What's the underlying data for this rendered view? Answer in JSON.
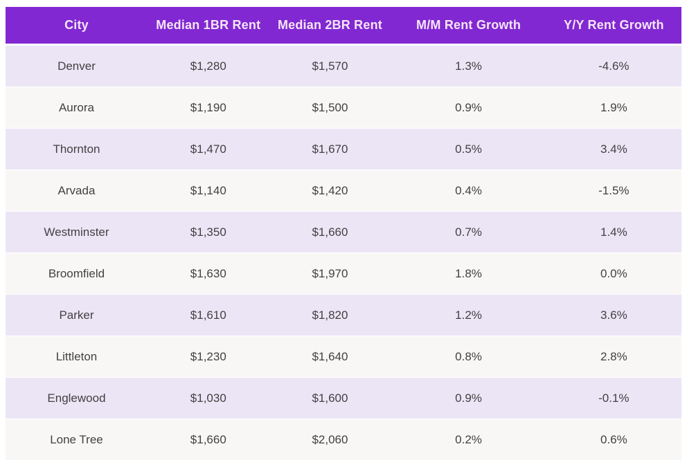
{
  "colors": {
    "header_bg": "#8128d2",
    "header_text": "#f6e6f8",
    "row_alt_lavender": "#ece5f6",
    "row_alt_gray": "#f8f7f6",
    "body_text": "#414141",
    "page_bg": "#ffffff"
  },
  "chart_data": {
    "type": "table",
    "columns": [
      "City",
      "Median 1BR Rent",
      "Median 2BR Rent",
      "M/M Rent Growth",
      "Y/Y Rent Growth"
    ],
    "rows": [
      [
        "Denver",
        "$1,280",
        "$1,570",
        "1.3%",
        "-4.6%"
      ],
      [
        "Aurora",
        "$1,190",
        "$1,500",
        "0.9%",
        "1.9%"
      ],
      [
        "Thornton",
        "$1,470",
        "$1,670",
        "0.5%",
        "3.4%"
      ],
      [
        "Arvada",
        "$1,140",
        "$1,420",
        "0.4%",
        "-1.5%"
      ],
      [
        "Westminster",
        "$1,350",
        "$1,660",
        "0.7%",
        "1.4%"
      ],
      [
        "Broomfield",
        "$1,630",
        "$1,970",
        "1.8%",
        "0.0%"
      ],
      [
        "Parker",
        "$1,610",
        "$1,820",
        "1.2%",
        "3.6%"
      ],
      [
        "Littleton",
        "$1,230",
        "$1,640",
        "0.8%",
        "2.8%"
      ],
      [
        "Englewood",
        "$1,030",
        "$1,600",
        "0.9%",
        "-0.1%"
      ],
      [
        "Lone Tree",
        "$1,660",
        "$2,060",
        "0.2%",
        "0.6%"
      ]
    ]
  }
}
